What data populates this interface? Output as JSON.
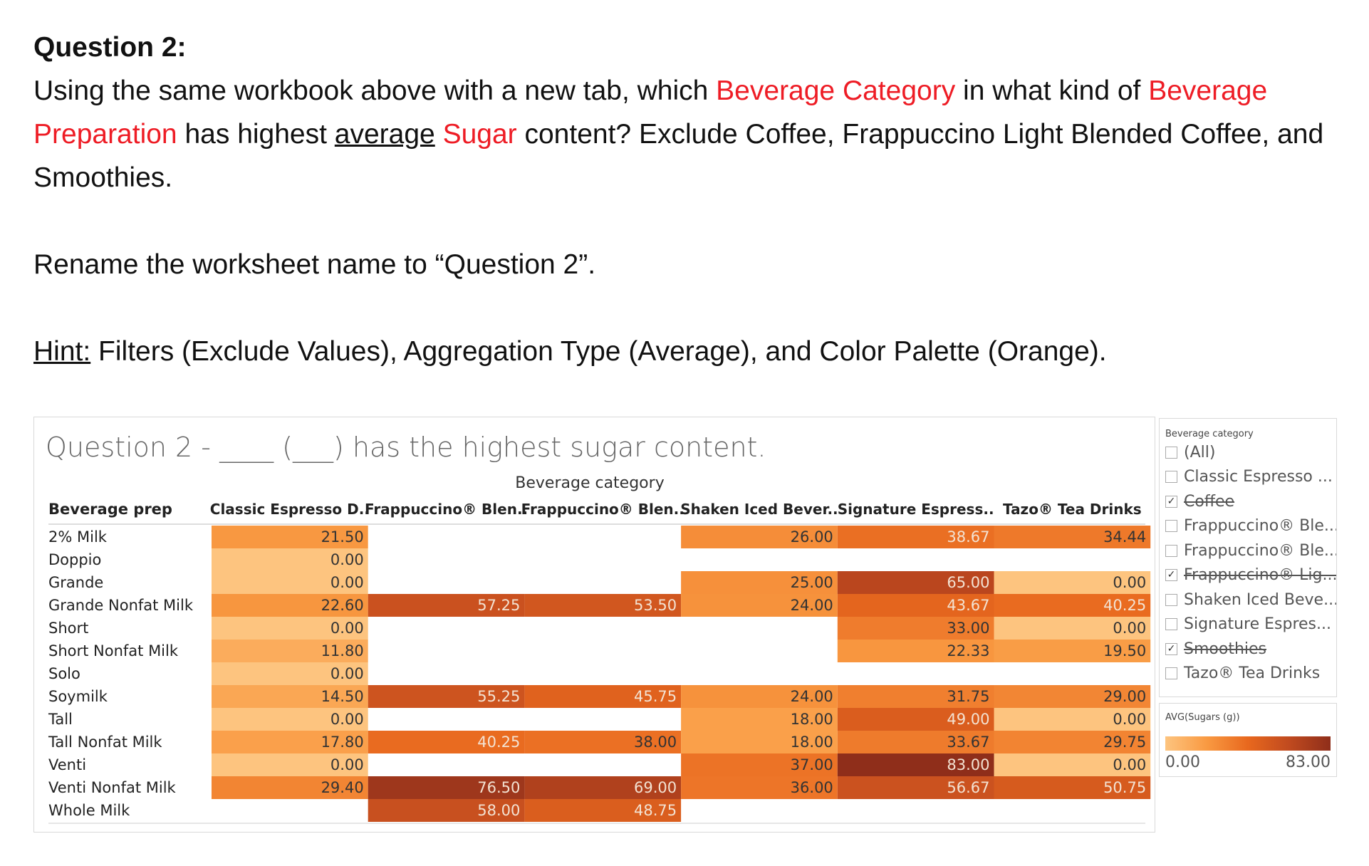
{
  "question": {
    "title": "Question 2:",
    "line1_a": "Using the same workbook above with a new tab, which ",
    "line1_red1": "Beverage Category",
    "line1_b": " in what kind of ",
    "line1_red2": "Beverage",
    "line2_red1": "Preparation",
    "line2_a": " has highest ",
    "line2_u": "average",
    "line2_sp": " ",
    "line2_red2": "Sugar",
    "line2_b": " content? Exclude Coffee, Frappuccino Light Blended Coffee, and",
    "line3": "Smoothies.",
    "rename": "Rename the worksheet name to “Question 2”.",
    "hint_label": "Hint:",
    "hint_text": " Filters (Exclude Values), Aggregation Type (Average), and Color Palette (Orange)."
  },
  "viz": {
    "title": "Question 2 - ____ (___) has the highest sugar content.",
    "column_super_header": "Beverage category"
  },
  "chart_data": {
    "type": "heatmap",
    "row_header": "Beverage prep",
    "columns": [
      "Classic Espresso D..",
      "Frappuccino® Blen..",
      "Frappuccino® Blen..",
      "Shaken Iced Bever..",
      "Signature Espress..",
      "Tazo® Tea Drinks"
    ],
    "rows": [
      "2% Milk",
      "Doppio",
      "Grande",
      "Grande Nonfat Milk",
      "Short",
      "Short Nonfat Milk",
      "Solo",
      "Soymilk",
      "Tall",
      "Tall Nonfat Milk",
      "Venti",
      "Venti Nonfat Milk",
      "Whole Milk"
    ],
    "values": [
      [
        21.5,
        null,
        null,
        26.0,
        38.67,
        34.44
      ],
      [
        0.0,
        null,
        null,
        null,
        null,
        null
      ],
      [
        0.0,
        null,
        null,
        25.0,
        65.0,
        0.0
      ],
      [
        22.6,
        57.25,
        53.5,
        24.0,
        43.67,
        40.25
      ],
      [
        0.0,
        null,
        null,
        null,
        33.0,
        0.0
      ],
      [
        11.8,
        null,
        null,
        null,
        22.33,
        19.5
      ],
      [
        0.0,
        null,
        null,
        null,
        null,
        null
      ],
      [
        14.5,
        55.25,
        45.75,
        24.0,
        31.75,
        29.0
      ],
      [
        0.0,
        null,
        null,
        18.0,
        49.0,
        0.0
      ],
      [
        17.8,
        40.25,
        38.0,
        18.0,
        33.67,
        29.75
      ],
      [
        0.0,
        null,
        null,
        37.0,
        83.0,
        0.0
      ],
      [
        29.4,
        76.5,
        69.0,
        36.0,
        56.67,
        50.75
      ],
      [
        null,
        58.0,
        48.75,
        null,
        null,
        null
      ]
    ],
    "color_measure": "AVG(Sugars (g))",
    "color_range": [
      0.0,
      83.0
    ],
    "color_palette": [
      "#fdc47f",
      "#f99a42",
      "#e8681e",
      "#c04a1f",
      "#8f2e1a"
    ],
    "legend_min_label": "0.00",
    "legend_max_label": "83.00"
  },
  "filter": {
    "title": "Beverage category",
    "items": [
      {
        "label": "(All)",
        "checked": false,
        "excluded": false
      },
      {
        "label": "Classic Espresso ...",
        "checked": false,
        "excluded": false
      },
      {
        "label": "Coffee",
        "checked": true,
        "excluded": true
      },
      {
        "label": "Frappuccino® Ble...",
        "checked": false,
        "excluded": false
      },
      {
        "label": "Frappuccino® Ble...",
        "checked": false,
        "excluded": false
      },
      {
        "label": "Frappuccino® Lig...",
        "checked": true,
        "excluded": true
      },
      {
        "label": "Shaken Iced Beve...",
        "checked": false,
        "excluded": false
      },
      {
        "label": "Signature Espres...",
        "checked": false,
        "excluded": false
      },
      {
        "label": "Smoothies",
        "checked": true,
        "excluded": true
      },
      {
        "label": "Tazo® Tea Drinks",
        "checked": false,
        "excluded": false
      }
    ]
  },
  "legend": {
    "title": "AVG(Sugars (g))",
    "min": "0.00",
    "max": "83.00"
  }
}
